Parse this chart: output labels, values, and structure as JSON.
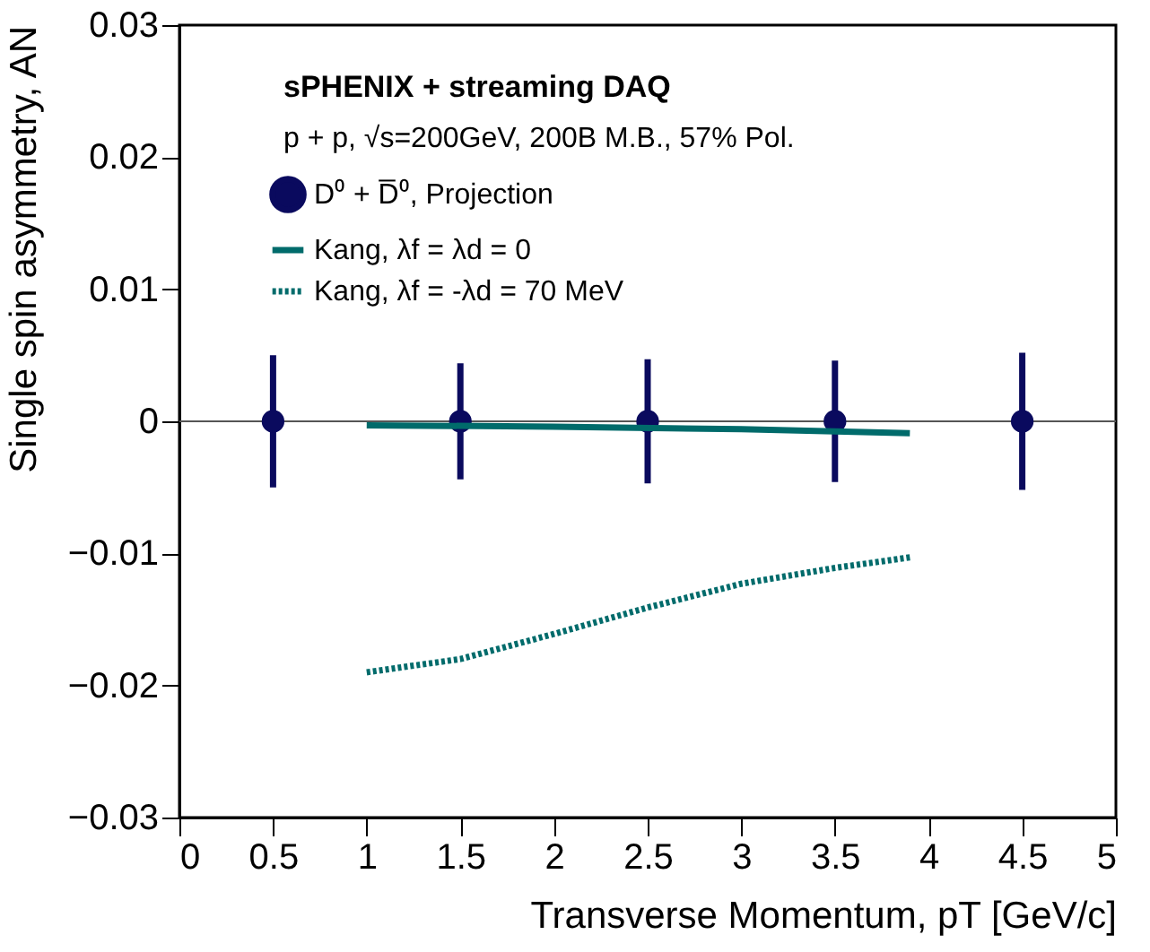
{
  "chart_data": {
    "type": "scatter",
    "xlabel": "Transverse Momentum, pT [GeV/c]",
    "ylabel": "Single spin asymmetry, AN",
    "annotations": [
      "sPHENIX + streaming DAQ",
      "p + p, √s=200GeV, 200B M.B., 57% Pol."
    ],
    "xlim": [
      0,
      5
    ],
    "xticks": [
      0,
      0.5,
      1,
      1.5,
      2,
      2.5,
      3,
      3.5,
      4,
      4.5,
      5
    ],
    "ylim": [
      -0.03,
      0.03
    ],
    "yticks": [
      {
        "value": -0.03,
        "label": "−0.03"
      },
      {
        "value": -0.02,
        "label": "−0.02"
      },
      {
        "value": -0.01,
        "label": "−0.01"
      },
      0,
      0.01,
      0.02,
      0.03
    ],
    "grid": false,
    "legend": "top left",
    "ref_lines": [
      {
        "axis": "y",
        "value": 0,
        "color": "#555555"
      }
    ],
    "series": [
      {
        "name": "D⁰ + D̅⁰, Projection",
        "marker": "circle",
        "color": "#0a0a5e",
        "x": [
          0.5,
          1.5,
          2.5,
          3.5,
          4.5
        ],
        "values": [
          0,
          0,
          0,
          0,
          0
        ],
        "errors": [
          0.005,
          0.0044,
          0.0047,
          0.0046,
          0.0052
        ]
      },
      {
        "name": "Kang, λf = λd = 0",
        "type": "line",
        "line_style": "solid",
        "color": "#006b6b",
        "x": [
          1,
          2,
          3,
          3.9
        ],
        "values": [
          -0.0003,
          -0.0004,
          -0.0006,
          -0.0009
        ]
      },
      {
        "name": "Kang, λf = -λd = 70 MeV",
        "type": "line",
        "line_style": "dotted",
        "color": "#006b6b",
        "x": [
          1,
          1.5,
          2,
          2.5,
          3,
          3.5,
          3.9
        ],
        "values": [
          -0.019,
          -0.018,
          -0.0161,
          -0.0141,
          -0.0123,
          -0.0111,
          -0.0103
        ]
      }
    ]
  }
}
